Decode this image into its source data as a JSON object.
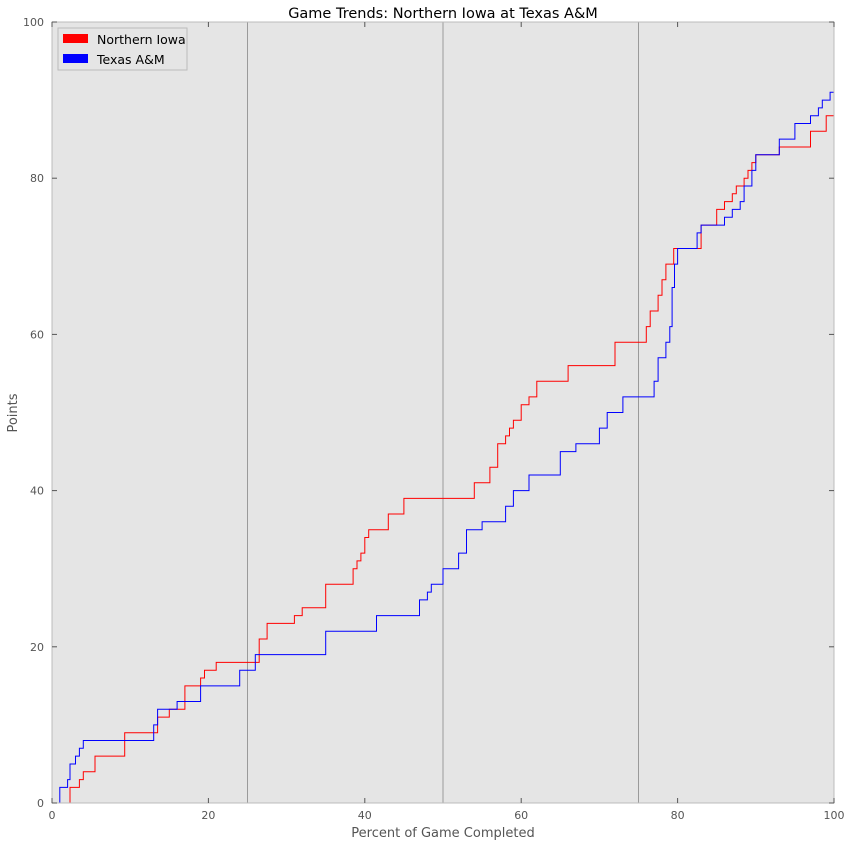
{
  "chart_data": {
    "type": "line",
    "title": "Game Trends: Northern Iowa at Texas A&M",
    "xlabel": "Percent of Game Completed",
    "ylabel": "Points",
    "xlim": [
      0,
      100
    ],
    "ylim": [
      0,
      100
    ],
    "xticks": [
      "0",
      "20",
      "40",
      "60",
      "80",
      "100"
    ],
    "yticks": [
      "0",
      "20",
      "40",
      "60",
      "80",
      "100"
    ],
    "vlines": [
      25,
      50,
      75
    ],
    "grid": false,
    "legend_position": "top-left",
    "background": "#e5e5e5",
    "series": [
      {
        "name": "Northern Iowa",
        "color": "#ff0000",
        "points": [
          [
            0,
            0
          ],
          [
            2.3,
            0
          ],
          [
            2.3,
            2
          ],
          [
            3.5,
            2
          ],
          [
            3.5,
            3
          ],
          [
            4,
            3
          ],
          [
            4,
            4
          ],
          [
            5.5,
            4
          ],
          [
            5.5,
            6
          ],
          [
            9.3,
            6
          ],
          [
            9.3,
            9
          ],
          [
            13.5,
            9
          ],
          [
            13.5,
            11
          ],
          [
            15,
            11
          ],
          [
            15,
            12
          ],
          [
            17,
            12
          ],
          [
            17,
            15
          ],
          [
            19,
            15
          ],
          [
            19,
            16
          ],
          [
            19.5,
            16
          ],
          [
            19.5,
            17
          ],
          [
            21,
            17
          ],
          [
            21,
            18
          ],
          [
            26.5,
            18
          ],
          [
            26.5,
            21
          ],
          [
            27.5,
            21
          ],
          [
            27.5,
            23
          ],
          [
            31,
            23
          ],
          [
            31,
            24
          ],
          [
            32,
            24
          ],
          [
            32,
            25
          ],
          [
            35,
            25
          ],
          [
            35,
            28
          ],
          [
            38.5,
            28
          ],
          [
            38.5,
            30
          ],
          [
            39,
            30
          ],
          [
            39,
            31
          ],
          [
            39.5,
            31
          ],
          [
            39.5,
            32
          ],
          [
            40,
            32
          ],
          [
            40,
            34
          ],
          [
            40.5,
            34
          ],
          [
            40.5,
            35
          ],
          [
            43,
            35
          ],
          [
            43,
            37
          ],
          [
            45,
            37
          ],
          [
            45,
            39
          ],
          [
            54,
            39
          ],
          [
            54,
            41
          ],
          [
            56,
            41
          ],
          [
            56,
            43
          ],
          [
            57,
            43
          ],
          [
            57,
            46
          ],
          [
            58,
            46
          ],
          [
            58,
            47
          ],
          [
            58.5,
            47
          ],
          [
            58.5,
            48
          ],
          [
            59,
            48
          ],
          [
            59,
            49
          ],
          [
            60,
            49
          ],
          [
            60,
            51
          ],
          [
            61,
            51
          ],
          [
            61,
            52
          ],
          [
            62,
            52
          ],
          [
            62,
            54
          ],
          [
            66,
            54
          ],
          [
            66,
            56
          ],
          [
            72,
            56
          ],
          [
            72,
            59
          ],
          [
            76,
            59
          ],
          [
            76,
            61
          ],
          [
            76.5,
            61
          ],
          [
            76.5,
            63
          ],
          [
            77.5,
            63
          ],
          [
            77.5,
            65
          ],
          [
            78,
            65
          ],
          [
            78,
            67
          ],
          [
            78.5,
            67
          ],
          [
            78.5,
            69
          ],
          [
            79.5,
            69
          ],
          [
            79.5,
            71
          ],
          [
            83,
            71
          ],
          [
            83,
            74
          ],
          [
            85,
            74
          ],
          [
            85,
            76
          ],
          [
            86,
            76
          ],
          [
            86,
            77
          ],
          [
            87,
            77
          ],
          [
            87,
            78
          ],
          [
            87.5,
            78
          ],
          [
            87.5,
            79
          ],
          [
            88.5,
            79
          ],
          [
            88.5,
            80
          ],
          [
            89,
            80
          ],
          [
            89,
            81
          ],
          [
            89.5,
            81
          ],
          [
            89.5,
            82
          ],
          [
            90,
            82
          ],
          [
            90,
            83
          ],
          [
            93,
            83
          ],
          [
            93,
            84
          ],
          [
            97,
            84
          ],
          [
            97,
            86
          ],
          [
            99,
            86
          ],
          [
            99,
            88
          ],
          [
            100,
            88
          ]
        ]
      },
      {
        "name": "Texas A&M",
        "color": "#0000ff",
        "points": [
          [
            0,
            0
          ],
          [
            1,
            0
          ],
          [
            1,
            2
          ],
          [
            2,
            2
          ],
          [
            2,
            3
          ],
          [
            2.3,
            3
          ],
          [
            2.3,
            5
          ],
          [
            3,
            5
          ],
          [
            3,
            6
          ],
          [
            3.5,
            6
          ],
          [
            3.5,
            7
          ],
          [
            4,
            7
          ],
          [
            4,
            8
          ],
          [
            13,
            8
          ],
          [
            13,
            10
          ],
          [
            13.5,
            10
          ],
          [
            13.5,
            12
          ],
          [
            16,
            12
          ],
          [
            16,
            13
          ],
          [
            19,
            13
          ],
          [
            19,
            15
          ],
          [
            24,
            15
          ],
          [
            24,
            17
          ],
          [
            26,
            17
          ],
          [
            26,
            19
          ],
          [
            35,
            19
          ],
          [
            35,
            22
          ],
          [
            41.5,
            22
          ],
          [
            41.5,
            24
          ],
          [
            47,
            24
          ],
          [
            47,
            26
          ],
          [
            48,
            26
          ],
          [
            48,
            27
          ],
          [
            48.5,
            27
          ],
          [
            48.5,
            28
          ],
          [
            50,
            28
          ],
          [
            50,
            30
          ],
          [
            52,
            30
          ],
          [
            52,
            32
          ],
          [
            53,
            32
          ],
          [
            53,
            35
          ],
          [
            55,
            35
          ],
          [
            55,
            36
          ],
          [
            58,
            36
          ],
          [
            58,
            38
          ],
          [
            59,
            38
          ],
          [
            59,
            40
          ],
          [
            61,
            40
          ],
          [
            61,
            42
          ],
          [
            65,
            42
          ],
          [
            65,
            45
          ],
          [
            67,
            45
          ],
          [
            67,
            46
          ],
          [
            70,
            46
          ],
          [
            70,
            48
          ],
          [
            71,
            48
          ],
          [
            71,
            50
          ],
          [
            73,
            50
          ],
          [
            73,
            52
          ],
          [
            77,
            52
          ],
          [
            77,
            54
          ],
          [
            77.5,
            54
          ],
          [
            77.5,
            57
          ],
          [
            78.5,
            57
          ],
          [
            78.5,
            59
          ],
          [
            79,
            59
          ],
          [
            79,
            61
          ],
          [
            79.3,
            61
          ],
          [
            79.3,
            66
          ],
          [
            79.6,
            66
          ],
          [
            79.6,
            69
          ],
          [
            80,
            69
          ],
          [
            80,
            71
          ],
          [
            82.5,
            71
          ],
          [
            82.5,
            73
          ],
          [
            83,
            73
          ],
          [
            83,
            74
          ],
          [
            86,
            74
          ],
          [
            86,
            75
          ],
          [
            87,
            75
          ],
          [
            87,
            76
          ],
          [
            88,
            76
          ],
          [
            88,
            77
          ],
          [
            88.5,
            77
          ],
          [
            88.5,
            79
          ],
          [
            89.5,
            79
          ],
          [
            89.5,
            81
          ],
          [
            90,
            81
          ],
          [
            90,
            83
          ],
          [
            93,
            83
          ],
          [
            93,
            85
          ],
          [
            95,
            85
          ],
          [
            95,
            87
          ],
          [
            97,
            87
          ],
          [
            97,
            88
          ],
          [
            98,
            88
          ],
          [
            98,
            89
          ],
          [
            98.5,
            89
          ],
          [
            98.5,
            90
          ],
          [
            99.5,
            90
          ],
          [
            99.5,
            91
          ],
          [
            100,
            91
          ],
          [
            100,
            92
          ]
        ]
      }
    ]
  }
}
